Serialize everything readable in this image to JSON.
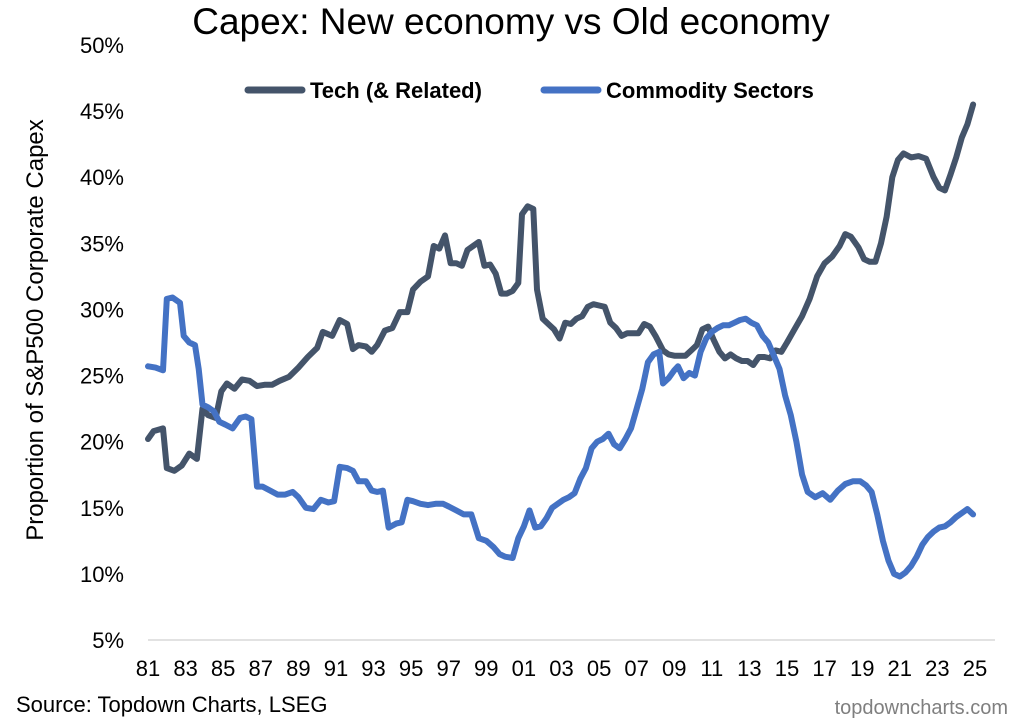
{
  "chart_data": {
    "type": "line",
    "title": "Capex: New economy vs Old economy",
    "ylabel": "Proportion of S&P500 Corporate Capex",
    "xlabel": "",
    "ylim": [
      5,
      50
    ],
    "y_ticks": [
      "5%",
      "10%",
      "15%",
      "20%",
      "25%",
      "30%",
      "35%",
      "40%",
      "45%",
      "50%"
    ],
    "x_ticks": [
      "81",
      "83",
      "85",
      "87",
      "89",
      "91",
      "93",
      "95",
      "97",
      "99",
      "01",
      "03",
      "05",
      "07",
      "09",
      "11",
      "13",
      "15",
      "17",
      "19",
      "21",
      "23",
      "25"
    ],
    "x_tick_years": [
      1981,
      1983,
      1985,
      1987,
      1989,
      1991,
      1993,
      1995,
      1997,
      1999,
      2001,
      2003,
      2005,
      2007,
      2009,
      2011,
      2013,
      2015,
      2017,
      2019,
      2021,
      2023,
      2025
    ],
    "xlim": [
      1981,
      2025.8
    ],
    "grid": false,
    "legend_position": "top",
    "series": [
      {
        "name": "Tech (& Related)",
        "color": "#44546a",
        "points": [
          [
            1981.0,
            20.2
          ],
          [
            1981.3,
            20.8
          ],
          [
            1981.8,
            21.0
          ],
          [
            1982.0,
            18.0
          ],
          [
            1982.4,
            17.8
          ],
          [
            1982.8,
            18.2
          ],
          [
            1983.2,
            19.1
          ],
          [
            1983.6,
            18.7
          ],
          [
            1983.9,
            22.5
          ],
          [
            1984.2,
            22.0
          ],
          [
            1984.6,
            21.8
          ],
          [
            1984.9,
            23.8
          ],
          [
            1985.2,
            24.4
          ],
          [
            1985.6,
            24.0
          ],
          [
            1986.0,
            24.7
          ],
          [
            1986.4,
            24.6
          ],
          [
            1986.8,
            24.2
          ],
          [
            1987.2,
            24.3
          ],
          [
            1987.6,
            24.3
          ],
          [
            1988.0,
            24.6
          ],
          [
            1988.5,
            24.9
          ],
          [
            1989.0,
            25.6
          ],
          [
            1989.5,
            26.4
          ],
          [
            1990.0,
            27.1
          ],
          [
            1990.3,
            28.3
          ],
          [
            1990.8,
            28.0
          ],
          [
            1991.2,
            29.2
          ],
          [
            1991.6,
            28.9
          ],
          [
            1991.9,
            27.0
          ],
          [
            1992.2,
            27.3
          ],
          [
            1992.6,
            27.2
          ],
          [
            1992.9,
            26.8
          ],
          [
            1993.2,
            27.3
          ],
          [
            1993.6,
            28.4
          ],
          [
            1994.0,
            28.6
          ],
          [
            1994.4,
            29.8
          ],
          [
            1994.8,
            29.8
          ],
          [
            1995.1,
            31.5
          ],
          [
            1995.5,
            32.1
          ],
          [
            1995.9,
            32.5
          ],
          [
            1996.2,
            34.8
          ],
          [
            1996.5,
            34.6
          ],
          [
            1996.8,
            35.6
          ],
          [
            1997.1,
            33.5
          ],
          [
            1997.4,
            33.5
          ],
          [
            1997.7,
            33.3
          ],
          [
            1998.0,
            34.5
          ],
          [
            1998.3,
            34.8
          ],
          [
            1998.6,
            35.1
          ],
          [
            1998.9,
            33.3
          ],
          [
            1999.2,
            33.4
          ],
          [
            1999.5,
            32.7
          ],
          [
            1999.8,
            31.2
          ],
          [
            2000.1,
            31.2
          ],
          [
            2000.4,
            31.4
          ],
          [
            2000.7,
            32.0
          ],
          [
            2000.9,
            37.2
          ],
          [
            2001.2,
            37.8
          ],
          [
            2001.5,
            37.6
          ],
          [
            2001.7,
            31.5
          ],
          [
            2002.0,
            29.3
          ],
          [
            2002.3,
            28.9
          ],
          [
            2002.6,
            28.5
          ],
          [
            2002.9,
            27.8
          ],
          [
            2003.2,
            29.0
          ],
          [
            2003.5,
            28.9
          ],
          [
            2003.8,
            29.3
          ],
          [
            2004.1,
            29.5
          ],
          [
            2004.4,
            30.2
          ],
          [
            2004.7,
            30.4
          ],
          [
            2005.0,
            30.3
          ],
          [
            2005.3,
            30.2
          ],
          [
            2005.6,
            29.0
          ],
          [
            2005.9,
            28.6
          ],
          [
            2006.2,
            28.0
          ],
          [
            2006.5,
            28.2
          ],
          [
            2006.8,
            28.2
          ],
          [
            2007.1,
            28.2
          ],
          [
            2007.4,
            28.9
          ],
          [
            2007.7,
            28.7
          ],
          [
            2008.0,
            28.0
          ],
          [
            2008.4,
            26.9
          ],
          [
            2008.7,
            26.6
          ],
          [
            2009.0,
            26.5
          ],
          [
            2009.3,
            26.5
          ],
          [
            2009.6,
            26.5
          ],
          [
            2009.9,
            26.9
          ],
          [
            2010.2,
            27.3
          ],
          [
            2010.5,
            28.5
          ],
          [
            2010.8,
            28.7
          ],
          [
            2011.1,
            27.7
          ],
          [
            2011.4,
            26.8
          ],
          [
            2011.7,
            26.3
          ],
          [
            2012.0,
            26.6
          ],
          [
            2012.3,
            26.3
          ],
          [
            2012.6,
            26.1
          ],
          [
            2012.9,
            26.1
          ],
          [
            2013.2,
            25.8
          ],
          [
            2013.5,
            26.4
          ],
          [
            2013.8,
            26.4
          ],
          [
            2014.1,
            26.3
          ],
          [
            2014.4,
            26.9
          ],
          [
            2014.7,
            26.8
          ],
          [
            2015.0,
            27.5
          ],
          [
            2015.4,
            28.5
          ],
          [
            2015.8,
            29.5
          ],
          [
            2016.2,
            30.8
          ],
          [
            2016.6,
            32.5
          ],
          [
            2017.0,
            33.5
          ],
          [
            2017.4,
            34.0
          ],
          [
            2017.8,
            34.8
          ],
          [
            2018.1,
            35.7
          ],
          [
            2018.4,
            35.5
          ],
          [
            2018.8,
            34.7
          ],
          [
            2019.1,
            33.8
          ],
          [
            2019.4,
            33.6
          ],
          [
            2019.7,
            33.6
          ],
          [
            2020.0,
            35.0
          ],
          [
            2020.3,
            37.0
          ],
          [
            2020.6,
            40.0
          ],
          [
            2020.9,
            41.3
          ],
          [
            2021.2,
            41.8
          ],
          [
            2021.6,
            41.5
          ],
          [
            2022.0,
            41.6
          ],
          [
            2022.4,
            41.4
          ],
          [
            2022.8,
            40.0
          ],
          [
            2023.1,
            39.2
          ],
          [
            2023.4,
            39.0
          ],
          [
            2023.7,
            40.2
          ],
          [
            2024.0,
            41.5
          ],
          [
            2024.3,
            43.0
          ],
          [
            2024.6,
            44.0
          ],
          [
            2024.9,
            45.5
          ]
        ]
      },
      {
        "name": "Commodity Sectors",
        "color": "#4472c4",
        "points": [
          [
            1981.0,
            25.7
          ],
          [
            1981.4,
            25.6
          ],
          [
            1981.8,
            25.4
          ],
          [
            1982.0,
            30.8
          ],
          [
            1982.3,
            30.9
          ],
          [
            1982.7,
            30.5
          ],
          [
            1982.9,
            28.0
          ],
          [
            1983.2,
            27.5
          ],
          [
            1983.5,
            27.3
          ],
          [
            1983.7,
            25.5
          ],
          [
            1983.9,
            22.8
          ],
          [
            1984.2,
            22.6
          ],
          [
            1984.5,
            22.3
          ],
          [
            1984.8,
            21.5
          ],
          [
            1985.1,
            21.3
          ],
          [
            1985.5,
            21.0
          ],
          [
            1985.9,
            21.8
          ],
          [
            1986.2,
            21.9
          ],
          [
            1986.5,
            21.7
          ],
          [
            1986.8,
            16.6
          ],
          [
            1987.1,
            16.6
          ],
          [
            1987.5,
            16.3
          ],
          [
            1987.9,
            16.0
          ],
          [
            1988.3,
            16.0
          ],
          [
            1988.7,
            16.2
          ],
          [
            1989.0,
            15.8
          ],
          [
            1989.4,
            15.0
          ],
          [
            1989.8,
            14.9
          ],
          [
            1990.2,
            15.6
          ],
          [
            1990.6,
            15.4
          ],
          [
            1990.9,
            15.5
          ],
          [
            1991.2,
            18.1
          ],
          [
            1991.6,
            18.0
          ],
          [
            1991.9,
            17.8
          ],
          [
            1992.2,
            17.0
          ],
          [
            1992.6,
            17.0
          ],
          [
            1992.9,
            16.3
          ],
          [
            1993.2,
            16.2
          ],
          [
            1993.5,
            16.3
          ],
          [
            1993.8,
            13.5
          ],
          [
            1994.2,
            13.8
          ],
          [
            1994.5,
            13.9
          ],
          [
            1994.8,
            15.6
          ],
          [
            1995.1,
            15.5
          ],
          [
            1995.5,
            15.3
          ],
          [
            1995.9,
            15.2
          ],
          [
            1996.3,
            15.3
          ],
          [
            1996.7,
            15.3
          ],
          [
            1997.0,
            15.1
          ],
          [
            1997.4,
            14.8
          ],
          [
            1997.8,
            14.5
          ],
          [
            1998.2,
            14.5
          ],
          [
            1998.6,
            12.7
          ],
          [
            1999.0,
            12.5
          ],
          [
            1999.4,
            12.0
          ],
          [
            1999.7,
            11.5
          ],
          [
            2000.0,
            11.3
          ],
          [
            2000.4,
            11.2
          ],
          [
            2000.7,
            12.7
          ],
          [
            2001.0,
            13.6
          ],
          [
            2001.3,
            14.8
          ],
          [
            2001.6,
            13.5
          ],
          [
            2001.9,
            13.6
          ],
          [
            2002.2,
            14.2
          ],
          [
            2002.5,
            15.0
          ],
          [
            2002.8,
            15.3
          ],
          [
            2003.1,
            15.6
          ],
          [
            2003.4,
            15.8
          ],
          [
            2003.7,
            16.1
          ],
          [
            2004.0,
            17.2
          ],
          [
            2004.3,
            18.0
          ],
          [
            2004.6,
            19.5
          ],
          [
            2004.9,
            20.0
          ],
          [
            2005.2,
            20.2
          ],
          [
            2005.5,
            20.6
          ],
          [
            2005.8,
            19.8
          ],
          [
            2006.1,
            19.5
          ],
          [
            2006.4,
            20.2
          ],
          [
            2006.7,
            21.0
          ],
          [
            2007.0,
            22.5
          ],
          [
            2007.3,
            24.0
          ],
          [
            2007.6,
            26.0
          ],
          [
            2007.9,
            26.6
          ],
          [
            2008.2,
            26.8
          ],
          [
            2008.4,
            24.4
          ],
          [
            2008.7,
            24.8
          ],
          [
            2009.0,
            25.4
          ],
          [
            2009.2,
            25.7
          ],
          [
            2009.5,
            24.8
          ],
          [
            2009.8,
            25.2
          ],
          [
            2010.1,
            25.0
          ],
          [
            2010.4,
            26.8
          ],
          [
            2010.7,
            27.8
          ],
          [
            2011.0,
            28.3
          ],
          [
            2011.3,
            28.6
          ],
          [
            2011.6,
            28.8
          ],
          [
            2011.9,
            28.8
          ],
          [
            2012.2,
            29.0
          ],
          [
            2012.5,
            29.2
          ],
          [
            2012.8,
            29.3
          ],
          [
            2013.1,
            29.0
          ],
          [
            2013.4,
            28.8
          ],
          [
            2013.7,
            28.0
          ],
          [
            2014.0,
            27.5
          ],
          [
            2014.3,
            26.5
          ],
          [
            2014.6,
            25.5
          ],
          [
            2014.9,
            23.5
          ],
          [
            2015.2,
            22.0
          ],
          [
            2015.5,
            20.0
          ],
          [
            2015.8,
            17.5
          ],
          [
            2016.1,
            16.2
          ],
          [
            2016.5,
            15.8
          ],
          [
            2016.9,
            16.1
          ],
          [
            2017.3,
            15.6
          ],
          [
            2017.7,
            16.3
          ],
          [
            2018.1,
            16.8
          ],
          [
            2018.5,
            17.0
          ],
          [
            2018.9,
            17.0
          ],
          [
            2019.2,
            16.7
          ],
          [
            2019.5,
            16.2
          ],
          [
            2019.8,
            14.5
          ],
          [
            2020.1,
            12.5
          ],
          [
            2020.4,
            11.0
          ],
          [
            2020.7,
            10.0
          ],
          [
            2021.0,
            9.8
          ],
          [
            2021.3,
            10.1
          ],
          [
            2021.6,
            10.6
          ],
          [
            2021.9,
            11.3
          ],
          [
            2022.2,
            12.2
          ],
          [
            2022.5,
            12.8
          ],
          [
            2022.8,
            13.2
          ],
          [
            2023.1,
            13.5
          ],
          [
            2023.4,
            13.6
          ],
          [
            2023.7,
            13.9
          ],
          [
            2024.0,
            14.3
          ],
          [
            2024.3,
            14.6
          ],
          [
            2024.6,
            14.9
          ],
          [
            2024.9,
            14.5
          ]
        ]
      }
    ],
    "source": "Source: Topdown Charts, LSEG",
    "watermark": "topdowncharts.com"
  }
}
